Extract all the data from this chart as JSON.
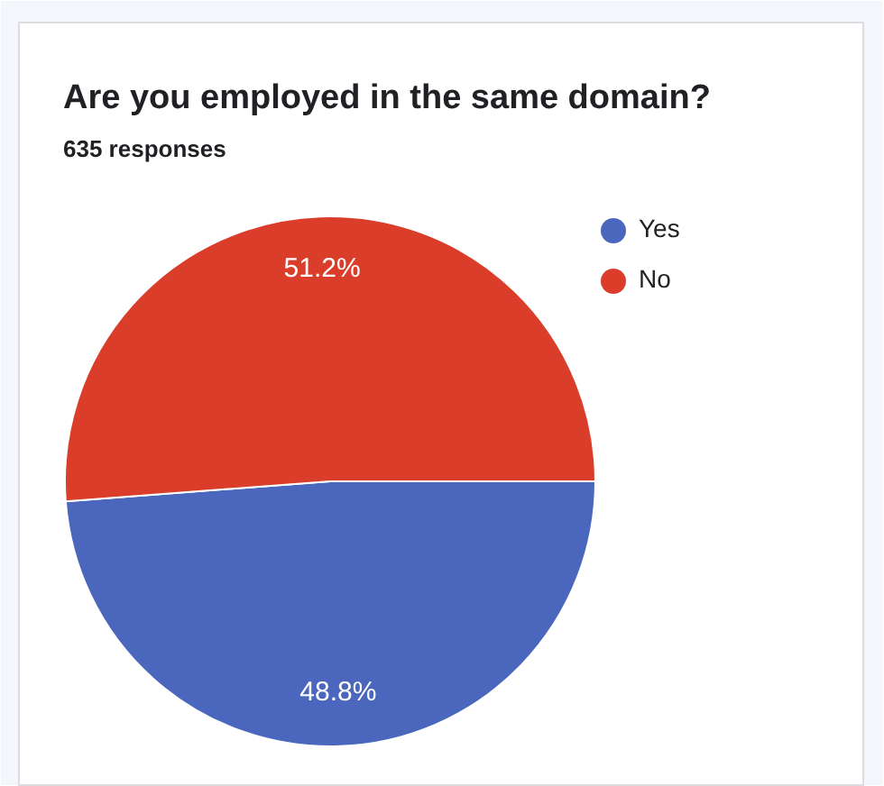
{
  "chart_data": {
    "type": "pie",
    "title": "Are you employed in the same domain?",
    "subtitle": "635 responses",
    "categories": [
      "Yes",
      "No"
    ],
    "values": [
      48.8,
      51.2
    ],
    "colors": [
      "#4a67bd",
      "#da3d2a"
    ],
    "value_labels": [
      "48.8%",
      "51.2%"
    ],
    "legend": "top right"
  }
}
